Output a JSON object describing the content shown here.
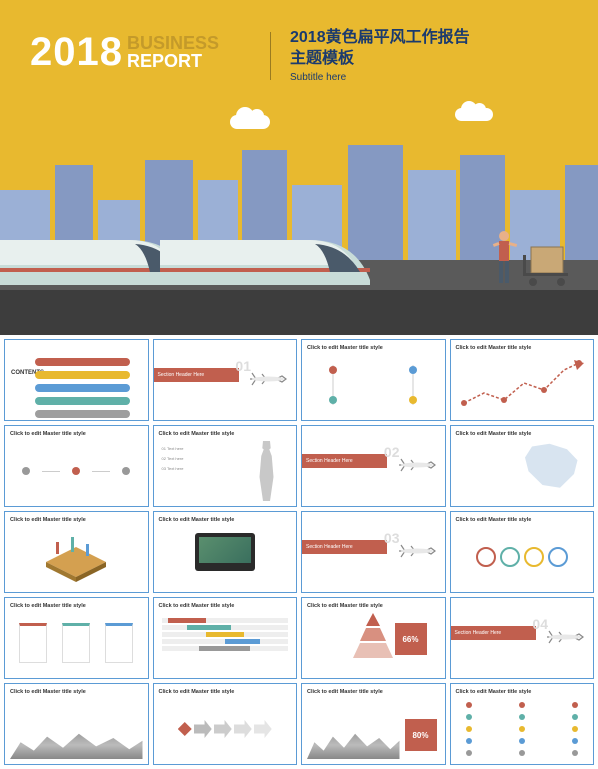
{
  "hero": {
    "year": "2018",
    "business": "BUSINESS",
    "report": "REPORT",
    "cn_title_l1": "2018黄色扁平风工作报告",
    "cn_title_l2": "主题模板",
    "subtitle": "Subtitle here"
  },
  "colors": {
    "bg_yellow": "#e8b92f",
    "accent": "#c15f4e",
    "blue": "#5b9bd5",
    "navy": "#1a3a6e",
    "teal": "#5fb0a8",
    "gray": "#9e9e9e"
  },
  "thumbs": [
    {
      "type": "contents",
      "title": "CONTENTS",
      "items": [
        {
          "c": "#c15f4e"
        },
        {
          "c": "#e8b92f"
        },
        {
          "c": "#5b9bd5"
        },
        {
          "c": "#5fb0a8"
        },
        {
          "c": "#9e9e9e"
        }
      ]
    },
    {
      "type": "section",
      "num": "01",
      "bar": "Section Header Here"
    },
    {
      "type": "timeline",
      "title": "Click to edit Master title style"
    },
    {
      "type": "linechart",
      "title": "Click to edit Master title style"
    },
    {
      "type": "dots3",
      "title": "Click to edit Master title style"
    },
    {
      "type": "textsil",
      "title": "Click to edit Master title style"
    },
    {
      "type": "section",
      "num": "02",
      "bar": "Section Header Here"
    },
    {
      "type": "map",
      "title": "Click to edit Master title style"
    },
    {
      "type": "iso3d",
      "title": "Click to edit Master title style"
    },
    {
      "type": "laptop",
      "title": "Click to edit Master title style"
    },
    {
      "type": "section",
      "num": "03",
      "bar": "Section Header Here"
    },
    {
      "type": "circles4",
      "title": "Click to edit Master title style"
    },
    {
      "type": "cols3",
      "title": "Click to edit Master title style"
    },
    {
      "type": "gantt",
      "title": "Click to edit Master title style"
    },
    {
      "type": "pyramid",
      "title": "Click to edit Master title style",
      "pct": "66%"
    },
    {
      "type": "section",
      "num": "04",
      "bar": "Section Header Here"
    },
    {
      "type": "mountain",
      "title": "Click to edit Master title style"
    },
    {
      "type": "arrows",
      "title": "Click to edit Master title style"
    },
    {
      "type": "mtnpct",
      "title": "Click to edit Master title style",
      "pct": "80%"
    },
    {
      "type": "iconlist",
      "title": "Click to edit Master title style"
    }
  ]
}
